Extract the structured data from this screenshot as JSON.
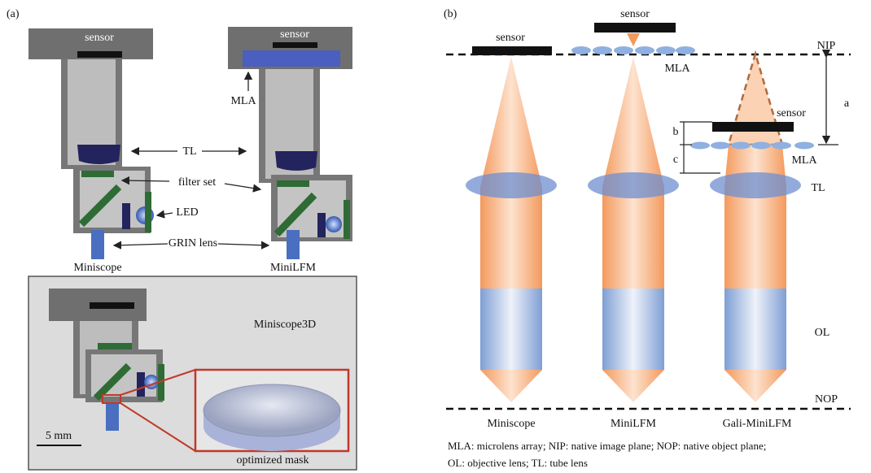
{
  "panel_a": {
    "label": "(a)",
    "sensor_labels": [
      "sensor",
      "sensor"
    ],
    "mla": "MLA",
    "tl": "TL",
    "filter_set": "filter set",
    "led": "LED",
    "grin_lens": "GRIN lens",
    "devices": [
      "Miniscope",
      "MiniLFM"
    ],
    "inset_title": "Miniscope3D",
    "scale_bar": "5 mm",
    "mask": "optimized mask"
  },
  "panel_b": {
    "label": "(b)",
    "sensor_labels": [
      "sensor",
      "sensor",
      "sensor"
    ],
    "nip": "NIP",
    "mla_labels": [
      "MLA",
      "MLA"
    ],
    "distances": [
      "a",
      "b",
      "c"
    ],
    "tl": "TL",
    "ol": "OL",
    "nop": "NOP",
    "columns": [
      "Miniscope",
      "MiniLFM",
      "Gali-MiniLFM"
    ],
    "caption": [
      "MLA: microlens array; NIP: native image plane; NOP: native object plane;",
      "OL: objective lens; TL: tube lens"
    ]
  }
}
